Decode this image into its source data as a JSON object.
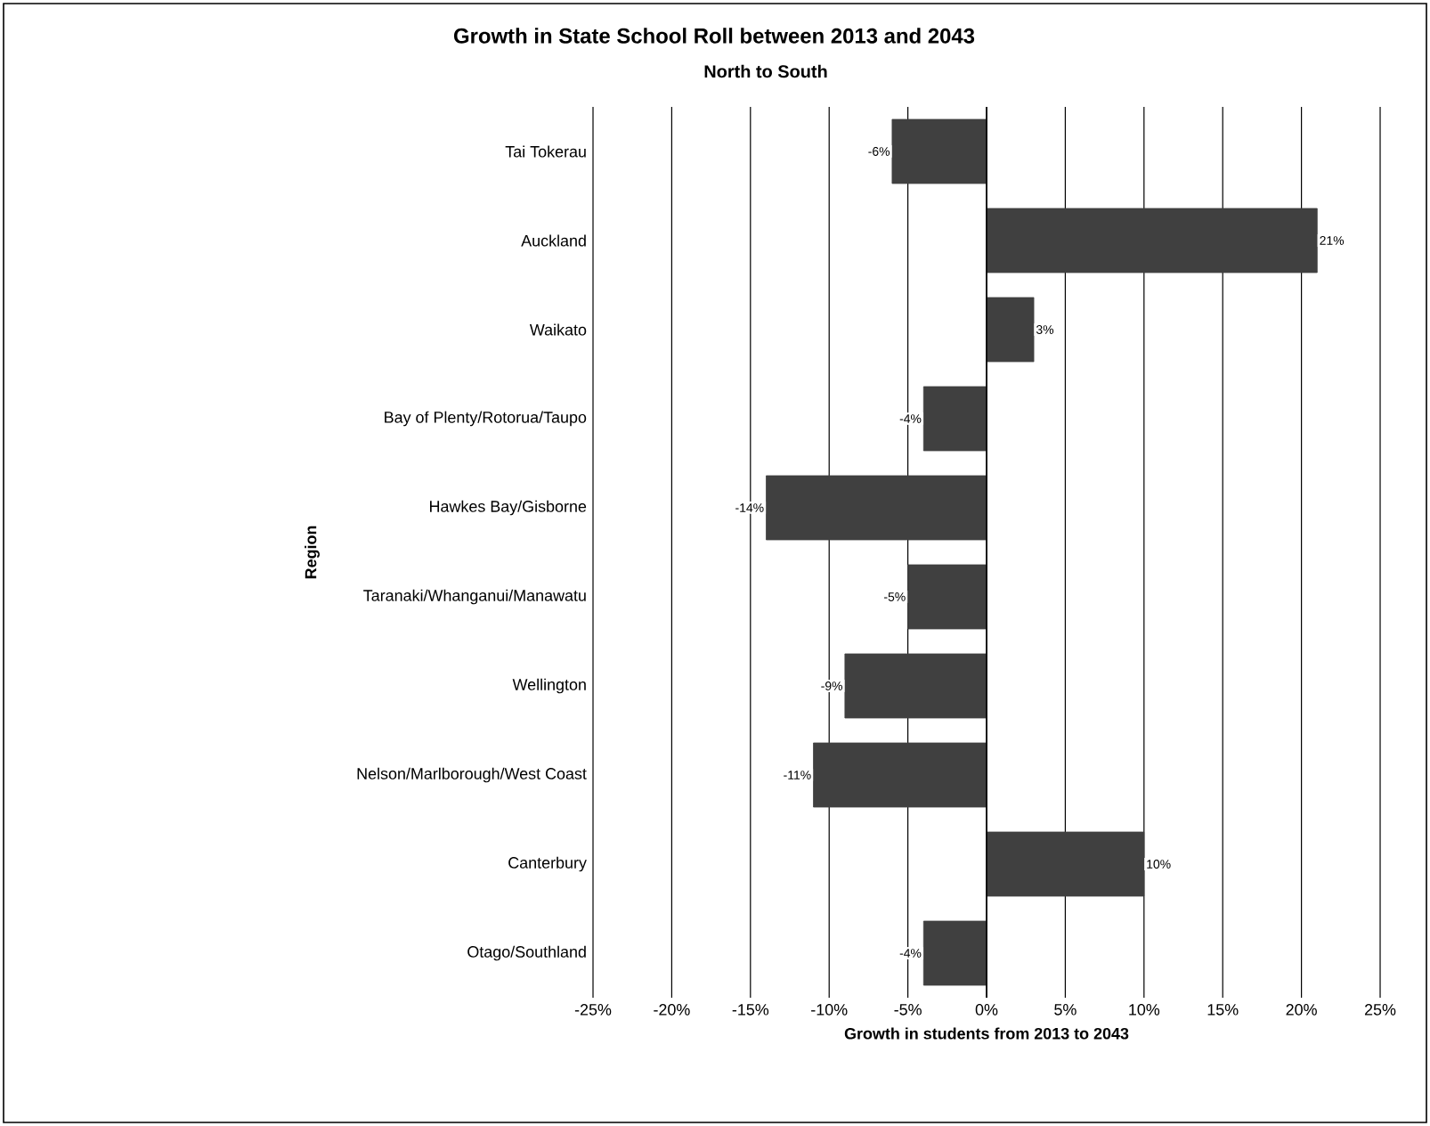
{
  "chart_data": {
    "type": "bar",
    "orientation": "horizontal",
    "title": "Growth in State School Roll between 2013 and 2043",
    "subtitle": "North to South",
    "xlabel": "Growth in students from 2013 to 2043",
    "ylabel": "Region",
    "categories": [
      "Tai Tokerau",
      "Auckland",
      "Waikato",
      "Bay of Plenty/Rotorua/Taupo",
      "Hawkes Bay/Gisborne",
      "Taranaki/Whanganui/Manawatu",
      "Wellington",
      "Nelson/Marlborough/West Coast",
      "Canterbury",
      "Otago/Southland"
    ],
    "values": [
      -6,
      21,
      3,
      -4,
      -14,
      -5,
      -9,
      -11,
      10,
      -4
    ],
    "value_labels": [
      "-6%",
      "21%",
      "3%",
      "-4%",
      "-14%",
      "-5%",
      "-9%",
      "-11%",
      "10%",
      "-4%"
    ],
    "color": "#404040",
    "xlim": [
      -25,
      25
    ],
    "xticks": [
      {
        "value": -25,
        "label": "-25%"
      },
      {
        "value": -20,
        "label": "-20%"
      },
      {
        "value": -15,
        "label": "-15%"
      },
      {
        "value": -10,
        "label": "-10%"
      },
      {
        "value": -5,
        "label": "-5%"
      },
      {
        "value": 0,
        "label": "0%"
      },
      {
        "value": 5,
        "label": "5%"
      },
      {
        "value": 10,
        "label": "10%"
      },
      {
        "value": 15,
        "label": "15%"
      },
      {
        "value": 20,
        "label": "20%"
      },
      {
        "value": 25,
        "label": "25%"
      }
    ],
    "grid": "x"
  }
}
